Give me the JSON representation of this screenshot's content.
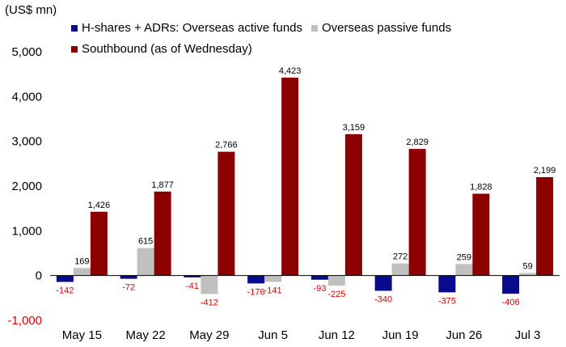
{
  "chart_data": {
    "type": "bar",
    "unit_label": "(US$ mn)",
    "categories": [
      "May 15",
      "May 22",
      "May 29",
      "Jun 5",
      "Jun 12",
      "Jun 19",
      "Jun 26",
      "Jul 3"
    ],
    "series": [
      {
        "name": "H-shares + ADRs: Overseas active funds",
        "color": "#0a0a8c",
        "values": [
          -142,
          -72,
          -41,
          -176,
          -93,
          -340,
          -375,
          -406
        ]
      },
      {
        "name": "Overseas passive funds",
        "color": "#c0c0c0",
        "values": [
          169,
          615,
          -412,
          -141,
          -225,
          272,
          259,
          59
        ]
      },
      {
        "name": "Southbound (as of Wednesday)",
        "color": "#8b0000",
        "values": [
          1426,
          1877,
          2766,
          4423,
          3159,
          2829,
          1828,
          2199
        ]
      }
    ],
    "data_labels": [
      [
        "-142",
        "-72",
        "-41",
        "-176",
        "-93",
        "-340",
        "-375",
        "-406"
      ],
      [
        "169",
        "615",
        "-412",
        "-141",
        "-225",
        "272",
        "259",
        "59"
      ],
      [
        "1,426",
        "1,877",
        "2,766",
        "4,423",
        "3,159",
        "2,829",
        "1,828",
        "2,199"
      ]
    ],
    "negative_label_color": "#e00000",
    "y_ticks": [
      -1000,
      0,
      1000,
      2000,
      3000,
      4000,
      5000
    ],
    "y_tick_labels": [
      "-1,000",
      "0",
      "1,000",
      "2,000",
      "3,000",
      "4,000",
      "5,000"
    ],
    "negative_tick_color": "#e00000",
    "ylim": [
      -1000,
      5000
    ],
    "grid": false,
    "legend_position": "top"
  }
}
